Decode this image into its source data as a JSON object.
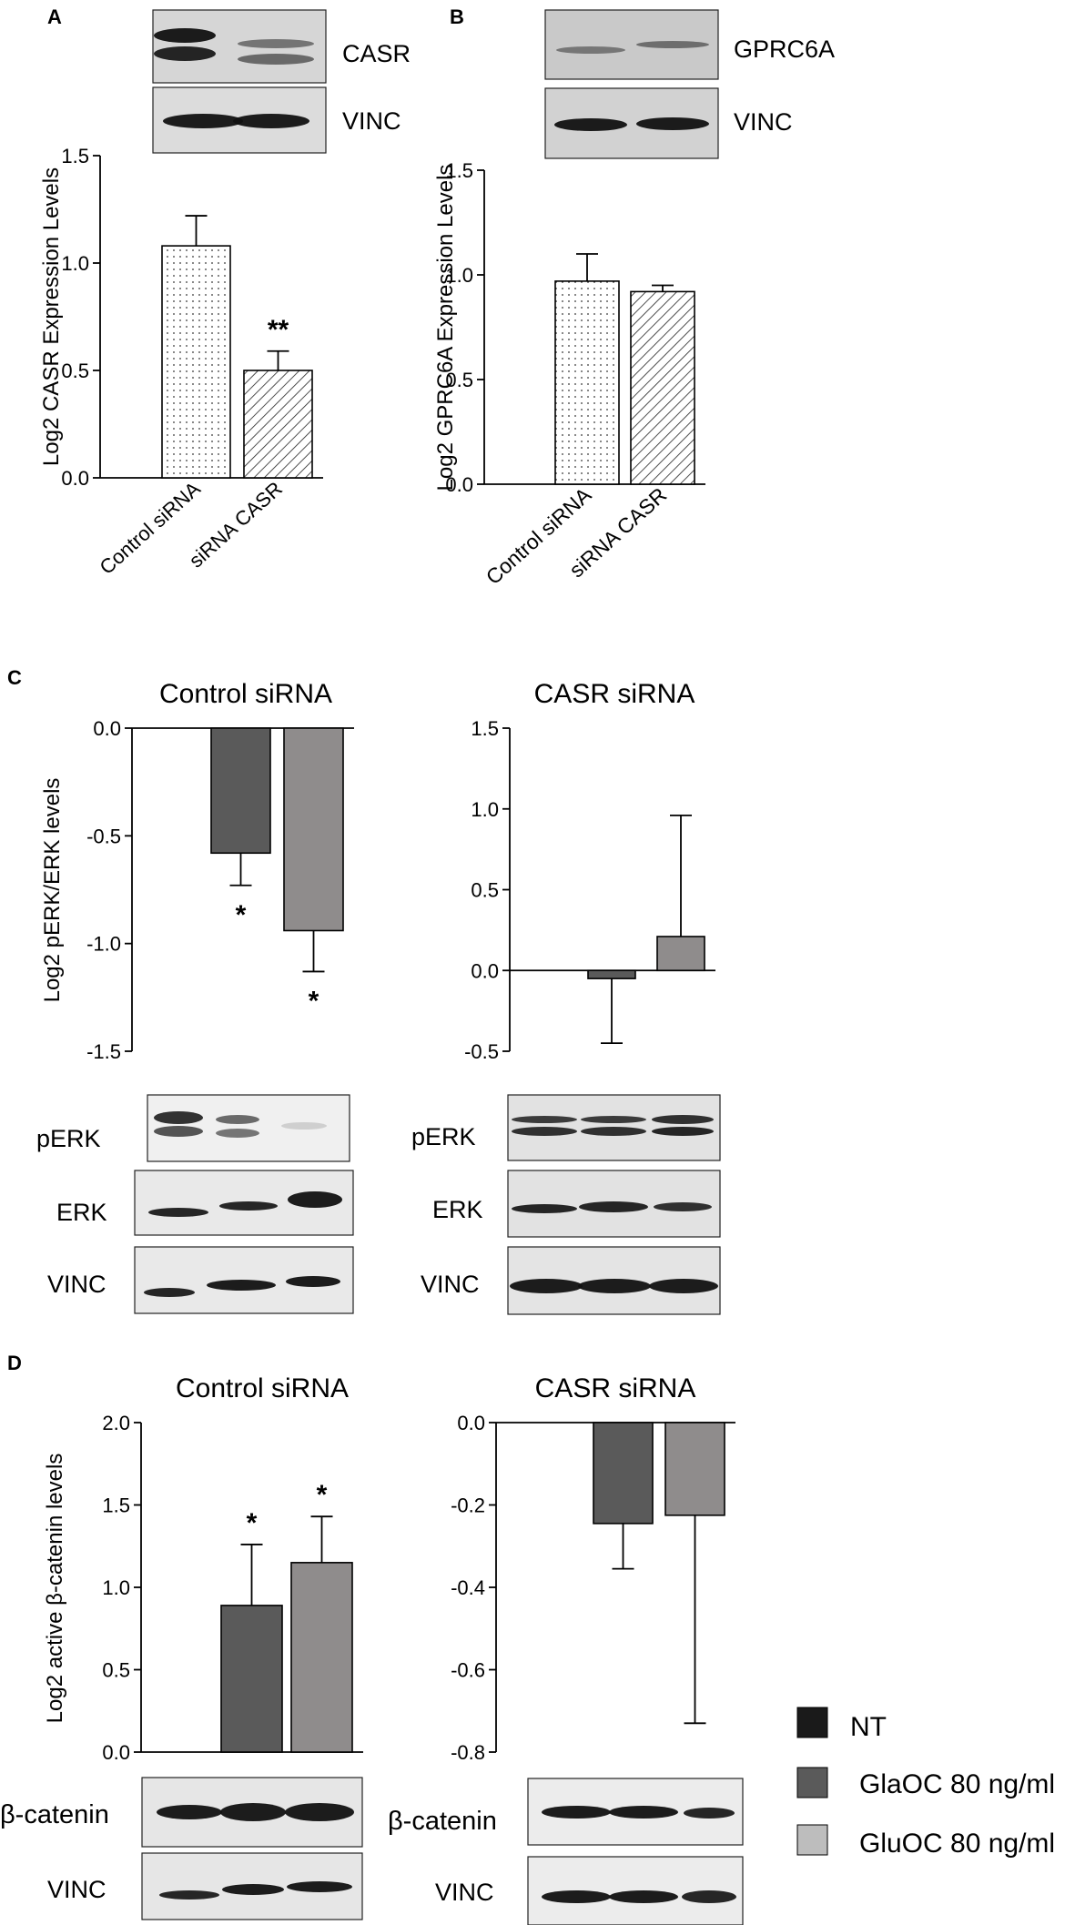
{
  "panels": {
    "A": {
      "letter": "A",
      "blot_labels": [
        "CASR",
        "VINC"
      ]
    },
    "B": {
      "letter": "B",
      "blot_labels": [
        "GPRC6A",
        "VINC"
      ]
    },
    "C": {
      "letter": "C",
      "left_title": "Control siRNA",
      "right_title": "CASR siRNA",
      "left_blot_labels": [
        "pERK",
        "ERK",
        "VINC"
      ],
      "right_blot_labels": [
        "pERK",
        "ERK",
        "VINC"
      ]
    },
    "D": {
      "letter": "D",
      "left_title": "Control siRNA",
      "right_title": "CASR siRNA",
      "left_blot_labels": [
        "β-catenin",
        "VINC"
      ],
      "right_blot_labels": [
        "β-catenin",
        "VINC"
      ]
    }
  },
  "legend": {
    "items": [
      {
        "label": "NT",
        "color": "#1a1a1a"
      },
      {
        "label": "GlaOC 80 ng/ml",
        "color": "#5a5a5a"
      },
      {
        "label": "GluOC 80 ng/ml",
        "color": "#bdbdbd"
      }
    ]
  },
  "chart_data": [
    {
      "panel": "A",
      "type": "bar",
      "categories": [
        "Control siRNA",
        "siRNA CASR"
      ],
      "values": [
        1.08,
        0.5
      ],
      "errors": [
        0.14,
        0.09
      ],
      "significance": [
        "",
        "**"
      ],
      "fills": [
        "dots",
        "hatch"
      ],
      "ylabel": "Log2 CASR Expression Levels",
      "ylim": [
        0,
        1.5
      ],
      "yticks": [
        "0.0",
        "0.5",
        "1.0",
        "1.5"
      ]
    },
    {
      "panel": "B",
      "type": "bar",
      "categories": [
        "Control siRNA",
        "siRNA CASR"
      ],
      "values": [
        0.97,
        0.92
      ],
      "errors": [
        0.13,
        0.03
      ],
      "significance": [
        "",
        ""
      ],
      "fills": [
        "dots",
        "hatch"
      ],
      "ylabel": "Log2 GPRC6A Expression Levels",
      "ylim": [
        0,
        1.5
      ],
      "yticks": [
        "0.0",
        "0.5",
        "1.0",
        "1.5"
      ]
    },
    {
      "panel": "C-left",
      "type": "bar",
      "title": "Control siRNA",
      "categories": [
        "NT",
        "GlaOC 80 ng/ml",
        "GluOC 80 ng/ml"
      ],
      "values": [
        0,
        -0.58,
        -0.94
      ],
      "errors": [
        0,
        0.15,
        0.19
      ],
      "significance": [
        "",
        "*",
        "*"
      ],
      "ylabel": "Log2 pERK/ERK levels",
      "ylim": [
        -1.5,
        0
      ],
      "yticks": [
        "0.0",
        "-0.5",
        "-1.0",
        "-1.5"
      ]
    },
    {
      "panel": "C-right",
      "type": "bar",
      "title": "CASR siRNA",
      "categories": [
        "NT",
        "GlaOC 80 ng/ml",
        "GluOC 80 ng/ml"
      ],
      "values": [
        0,
        -0.05,
        0.21
      ],
      "errors": [
        0,
        0.4,
        0.75
      ],
      "significance": [
        "",
        "",
        ""
      ],
      "ylim": [
        -0.5,
        1.5
      ],
      "yticks": [
        "1.5",
        "1.0",
        "0.5",
        "0.0",
        "-0.5"
      ]
    },
    {
      "panel": "D-left",
      "type": "bar",
      "title": "Control siRNA",
      "categories": [
        "NT",
        "GlaOC 80 ng/ml",
        "GluOC 80 ng/ml"
      ],
      "values": [
        0,
        0.89,
        1.15
      ],
      "errors": [
        0,
        0.37,
        0.28
      ],
      "significance": [
        "",
        "*",
        "*"
      ],
      "ylabel": "Log2 active β-catenin levels",
      "ylim": [
        0,
        2.0
      ],
      "yticks": [
        "0.0",
        "0.5",
        "1.0",
        "1.5",
        "2.0"
      ]
    },
    {
      "panel": "D-right",
      "type": "bar",
      "title": "CASR siRNA",
      "categories": [
        "NT",
        "GlaOC 80 ng/ml",
        "GluOC 80 ng/ml"
      ],
      "values": [
        0,
        -0.245,
        -0.225
      ],
      "errors": [
        0,
        0.11,
        0.505
      ],
      "significance": [
        "",
        "",
        ""
      ],
      "ylim": [
        -0.8,
        0
      ],
      "yticks": [
        "0.0",
        "-0.2",
        "-0.4",
        "-0.6",
        "-0.8"
      ]
    }
  ]
}
